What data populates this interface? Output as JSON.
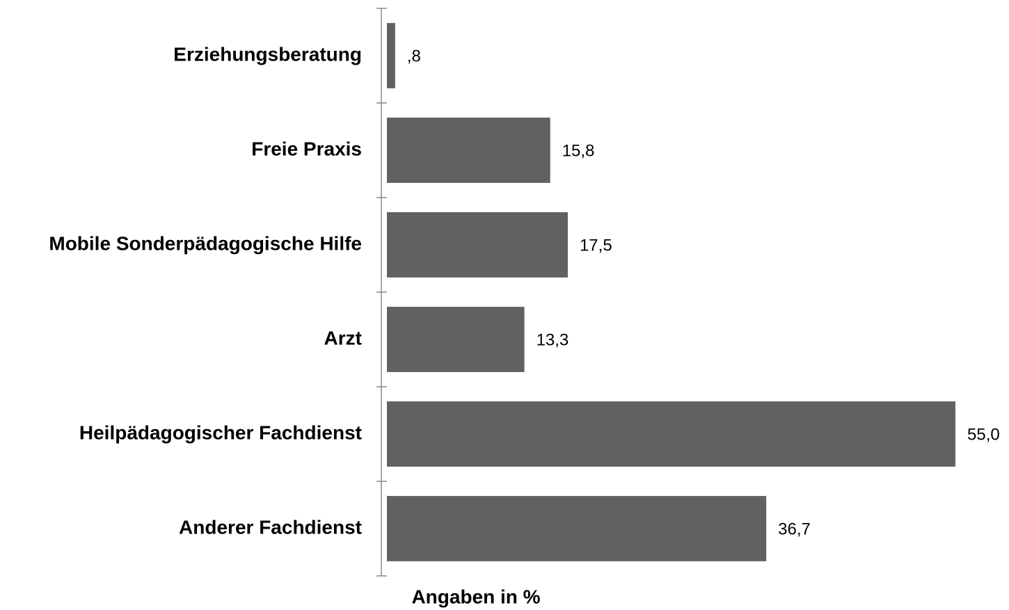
{
  "chart_data": {
    "type": "bar",
    "orientation": "horizontal",
    "categories": [
      "Erziehungsberatung",
      "Freie Praxis",
      "Mobile Sonderpädagogische Hilfe",
      "Arzt",
      "Heilpädagogischer Fachdienst",
      "Anderer Fachdienst"
    ],
    "values": [
      0.8,
      15.8,
      17.5,
      13.3,
      55.0,
      36.7
    ],
    "value_labels": [
      ",8",
      "15,8",
      "17,5",
      "13,3",
      "55,0",
      "36,7"
    ],
    "color": "#616161",
    "xlabel": "Angaben in %",
    "xlim": [
      0,
      55
    ]
  }
}
